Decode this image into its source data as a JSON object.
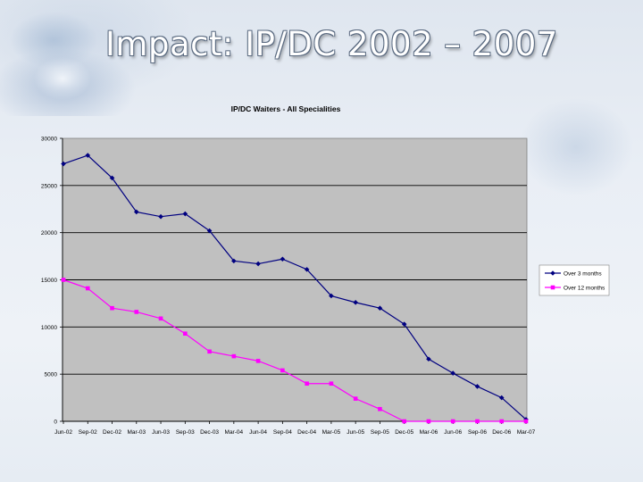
{
  "slide": {
    "title": "Impact: IP/DC 2002 – 2007"
  },
  "chart_data": {
    "type": "line",
    "title": "IP/DC Waiters - All Specialities",
    "categories": [
      "Jun-02",
      "Sep-02",
      "Dec-02",
      "Mar-03",
      "Jun-03",
      "Sep-03",
      "Dec-03",
      "Mar-04",
      "Jun-04",
      "Sep-04",
      "Dec-04",
      "Mar-05",
      "Jun-05",
      "Sep-05",
      "Dec-05",
      "Mar-06",
      "Jun-06",
      "Sep-06",
      "Dec-06",
      "Mar-07"
    ],
    "series": [
      {
        "name": "Over 3 months",
        "color": "#000080",
        "marker": "diamond",
        "values": [
          27300,
          28200,
          25800,
          22200,
          21700,
          22000,
          20200,
          17000,
          16700,
          17200,
          16100,
          13300,
          12600,
          12000,
          10300,
          6600,
          5100,
          3700,
          2500,
          200
        ]
      },
      {
        "name": "Over 12 months",
        "color": "#ff00ff",
        "marker": "square",
        "values": [
          15000,
          14100,
          12000,
          11600,
          10900,
          9300,
          7400,
          6900,
          6400,
          5400,
          4000,
          4000,
          2400,
          1300,
          0,
          0,
          0,
          0,
          0,
          0
        ]
      }
    ],
    "ylim": [
      0,
      30000
    ],
    "yticks": [
      0,
      5000,
      10000,
      15000,
      20000,
      25000,
      30000
    ],
    "grid": true,
    "plot_background": "#c0c0c0",
    "legend_position": "right"
  }
}
